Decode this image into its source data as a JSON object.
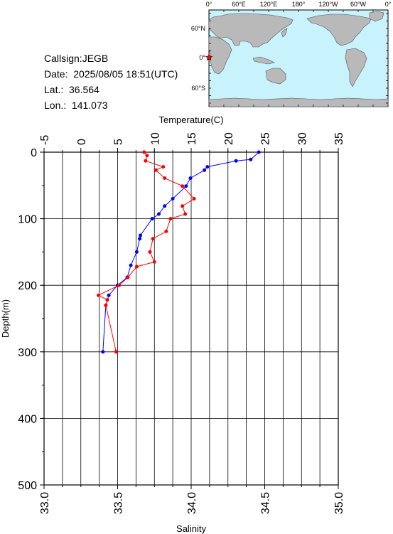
{
  "info": {
    "callsign": "Callsign:JEGB",
    "date": "Date:  2025/08/05 18:51(UTC)",
    "lat": "Lat.:  36.564",
    "lon": "Lon.:  141.073"
  },
  "map": {
    "top_labels": [
      "0°",
      "60°E",
      "120°E",
      "180°",
      "120°W",
      "60°W",
      "0°"
    ],
    "left_labels": [
      "60°N",
      "0°",
      "60°S"
    ],
    "ocean_color": "#c8f2fc",
    "land_color": "#b9b9b9",
    "marker": "star-icon",
    "marker_color": "#ff0000"
  },
  "chart_data": {
    "type": "line",
    "temperature_axis": {
      "label": "Temperature(C)",
      "range": [
        -5,
        35
      ],
      "ticks": [
        "-5",
        "0",
        "5",
        "10",
        "15",
        "20",
        "25",
        "30",
        "35"
      ]
    },
    "salinity_axis": {
      "label": "Salinity",
      "range": [
        33.0,
        35.0
      ],
      "ticks": [
        "33.0",
        "33.5",
        "34.0",
        "34.5",
        "35.0"
      ]
    },
    "depth_axis": {
      "label": "Depth(m)",
      "range": [
        0,
        500
      ],
      "ticks": [
        "0",
        "100",
        "200",
        "300",
        "400",
        "500"
      ]
    },
    "grid": true,
    "series": [
      {
        "quantity": "temperature",
        "color": "#0000ff",
        "points": [
          {
            "depth": 0,
            "value": 24.2
          },
          {
            "depth": 11,
            "value": 23.1
          },
          {
            "depth": 13,
            "value": 21.1
          },
          {
            "depth": 22,
            "value": 17.2
          },
          {
            "depth": 27,
            "value": 16.8
          },
          {
            "depth": 39,
            "value": 14.9
          },
          {
            "depth": 51,
            "value": 14.3
          },
          {
            "depth": 70,
            "value": 12.5
          },
          {
            "depth": 81,
            "value": 11.4
          },
          {
            "depth": 93,
            "value": 10.6
          },
          {
            "depth": 100,
            "value": 9.7
          },
          {
            "depth": 125,
            "value": 8.1
          },
          {
            "depth": 130,
            "value": 8.0
          },
          {
            "depth": 150,
            "value": 7.6
          },
          {
            "depth": 170,
            "value": 6.8
          },
          {
            "depth": 188,
            "value": 6.3
          },
          {
            "depth": 200,
            "value": 5.0
          },
          {
            "depth": 215,
            "value": 3.8
          },
          {
            "depth": 230,
            "value": 3.4
          },
          {
            "depth": 300,
            "value": 3.0
          }
        ]
      },
      {
        "quantity": "salinity",
        "color": "#ff0000",
        "points": [
          {
            "depth": 0,
            "value": 33.68
          },
          {
            "depth": 5,
            "value": 33.7
          },
          {
            "depth": 13,
            "value": 33.69
          },
          {
            "depth": 22,
            "value": 33.81
          },
          {
            "depth": 27,
            "value": 33.76
          },
          {
            "depth": 39,
            "value": 33.82
          },
          {
            "depth": 51,
            "value": 33.94
          },
          {
            "depth": 70,
            "value": 34.02
          },
          {
            "depth": 81,
            "value": 33.94
          },
          {
            "depth": 93,
            "value": 33.96
          },
          {
            "depth": 100,
            "value": 33.86
          },
          {
            "depth": 119,
            "value": 33.83
          },
          {
            "depth": 130,
            "value": 33.74
          },
          {
            "depth": 150,
            "value": 33.72
          },
          {
            "depth": 165,
            "value": 33.75
          },
          {
            "depth": 172,
            "value": 33.63
          },
          {
            "depth": 188,
            "value": 33.57
          },
          {
            "depth": 200,
            "value": 33.51
          },
          {
            "depth": 215,
            "value": 33.37
          },
          {
            "depth": 222,
            "value": 33.43
          },
          {
            "depth": 230,
            "value": 33.42
          },
          {
            "depth": 300,
            "value": 33.49
          }
        ]
      }
    ]
  }
}
